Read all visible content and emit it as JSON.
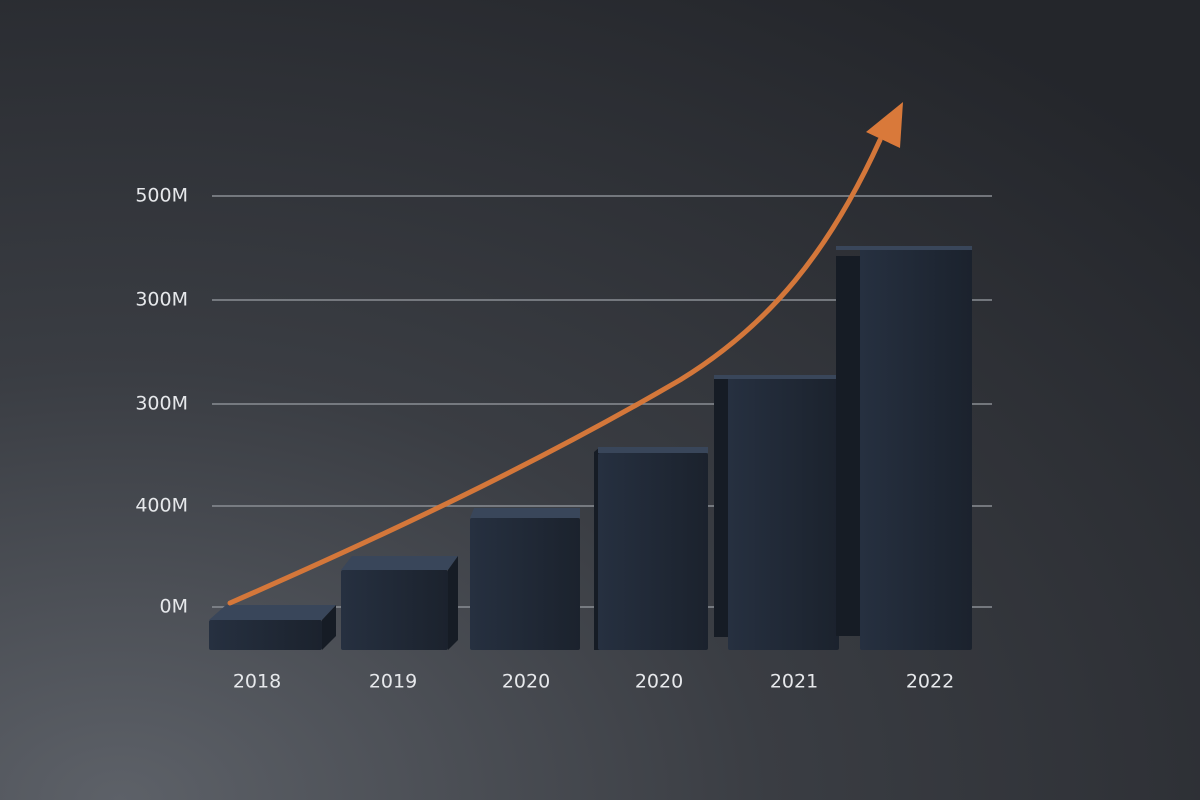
{
  "axis_labels": [
    "500M",
    "300M",
    "300M",
    "400M",
    "0M"
  ],
  "year_labels": [
    "2018",
    "2019",
    "2020",
    "2020",
    "2021",
    "2022"
  ]
}
